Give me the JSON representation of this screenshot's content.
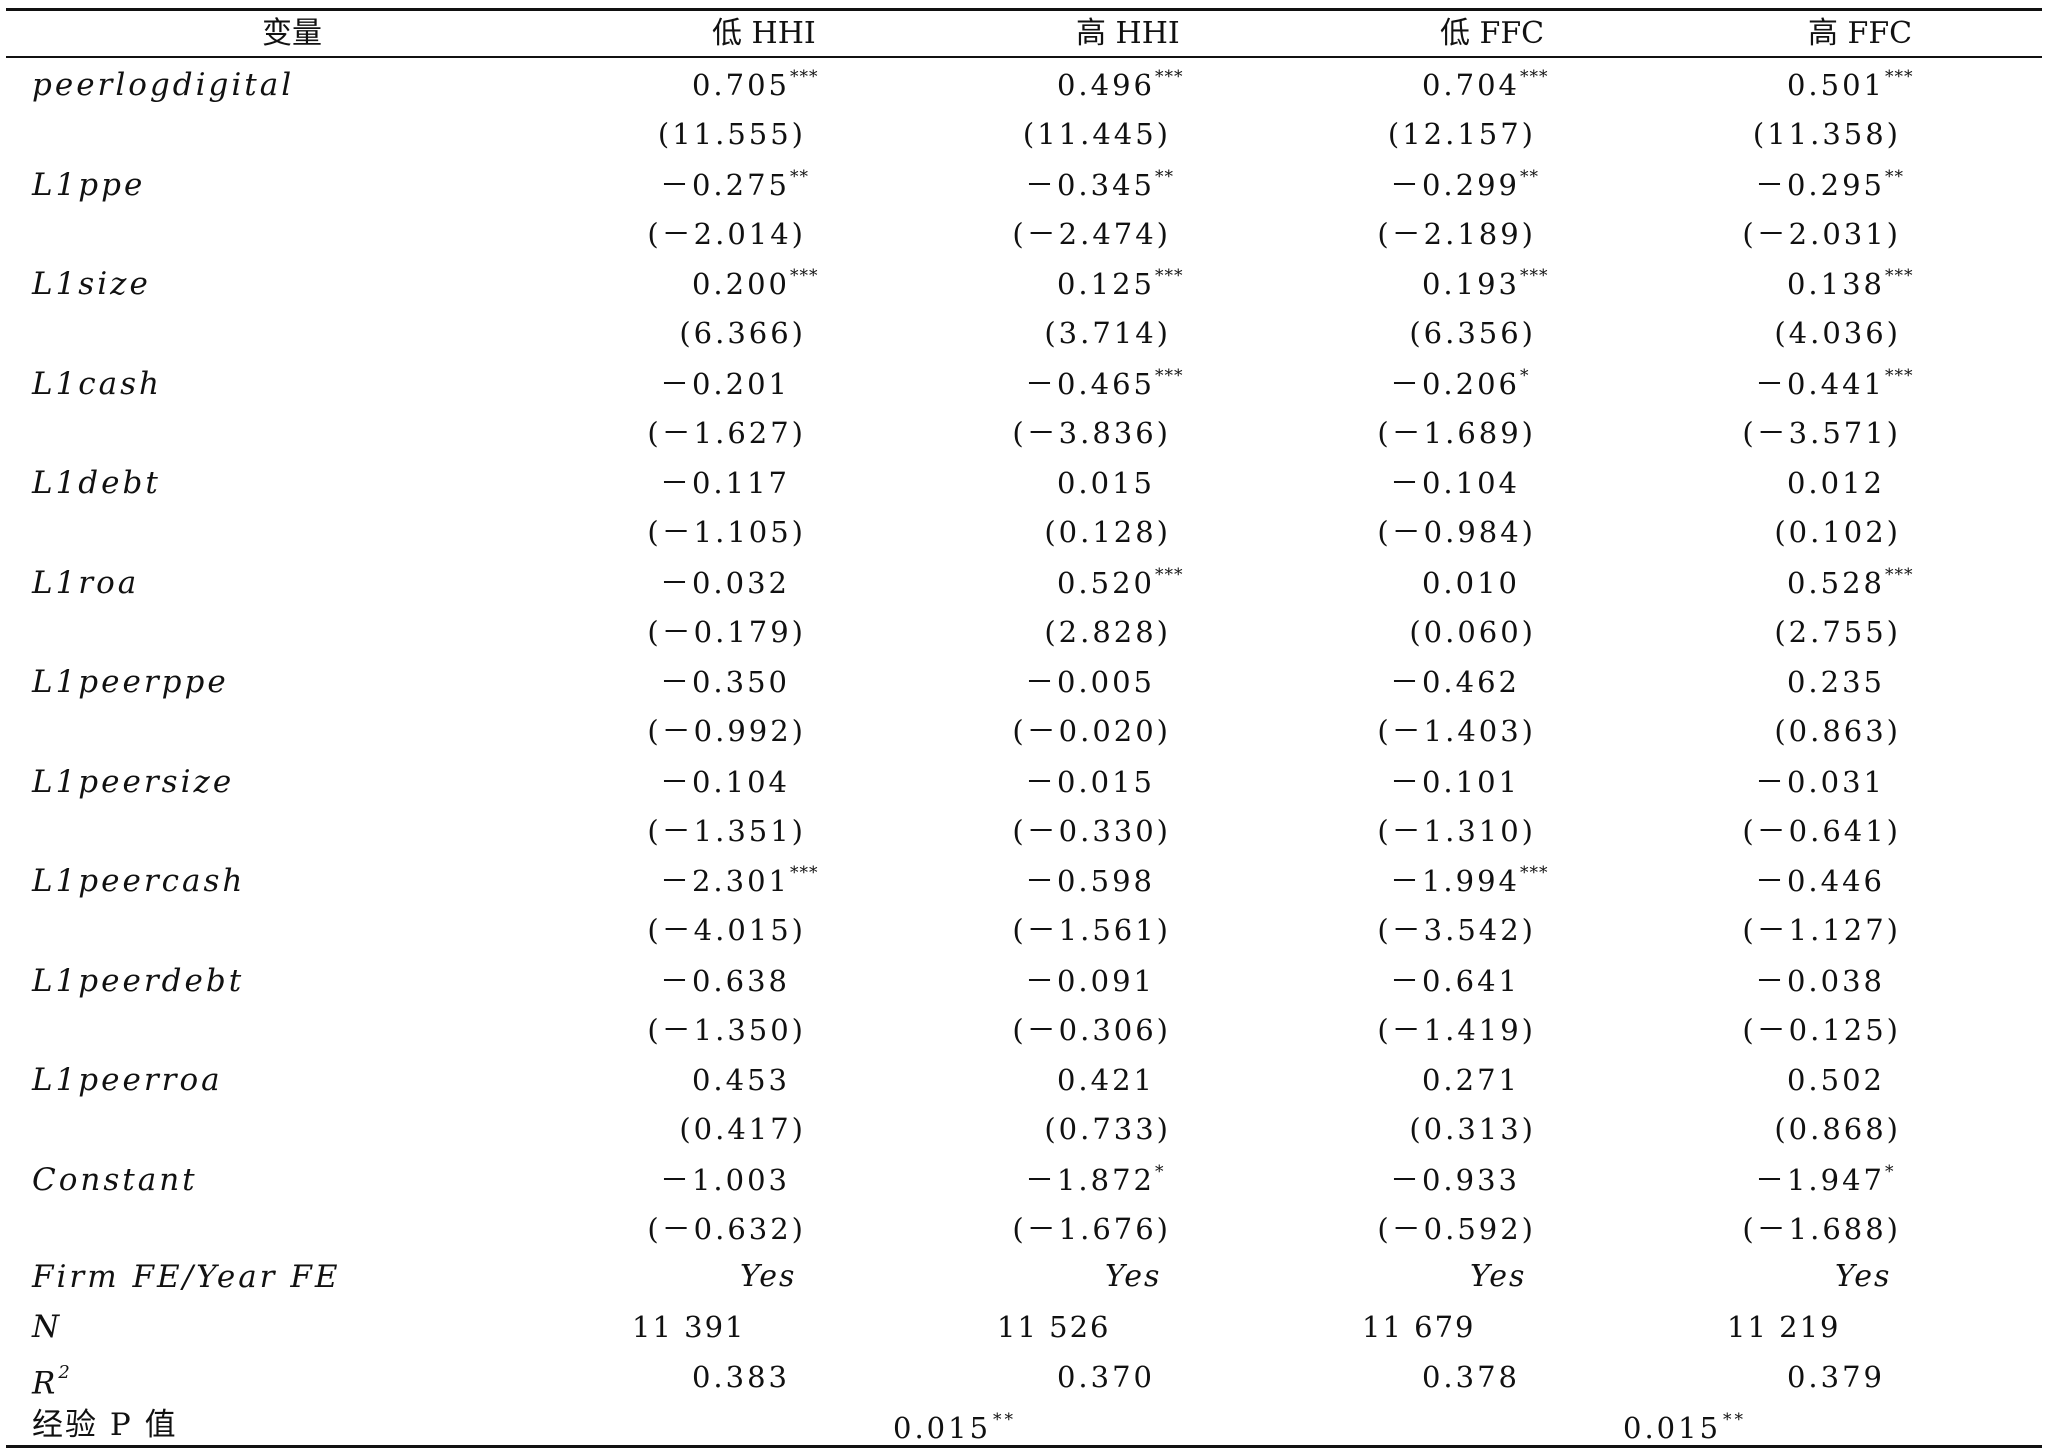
{
  "header": {
    "c0": "变量",
    "c1": "低 HHI",
    "c2": "高 HHI",
    "c3": "低 FFC",
    "c4": "高 FFC"
  },
  "rows": [
    {
      "label": "peerlogdigital",
      "coef": [
        "0.705",
        "0.496",
        "0.704",
        "0.501"
      ],
      "stars": [
        "***",
        "***",
        "***",
        "***"
      ],
      "t": [
        "(11.555)",
        "(11.445)",
        "(12.157)",
        "(11.358)"
      ]
    },
    {
      "label": "L1ppe",
      "coef": [
        "－0.275",
        "－0.345",
        "－0.299",
        "－0.295"
      ],
      "stars": [
        "**",
        "**",
        "**",
        "**"
      ],
      "t": [
        "(－2.014)",
        "(－2.474)",
        "(－2.189)",
        "(－2.031)"
      ]
    },
    {
      "label": "L1size",
      "coef": [
        "0.200",
        "0.125",
        "0.193",
        "0.138"
      ],
      "stars": [
        "***",
        "***",
        "***",
        "***"
      ],
      "t": [
        "(6.366)",
        "(3.714)",
        "(6.356)",
        "(4.036)"
      ]
    },
    {
      "label": "L1cash",
      "coef": [
        "－0.201",
        "－0.465",
        "－0.206",
        "－0.441"
      ],
      "stars": [
        "",
        "***",
        "*",
        "***"
      ],
      "t": [
        "(－1.627)",
        "(－3.836)",
        "(－1.689)",
        "(－3.571)"
      ]
    },
    {
      "label": "L1debt",
      "coef": [
        "－0.117",
        "0.015",
        "－0.104",
        "0.012"
      ],
      "stars": [
        "",
        "",
        "",
        ""
      ],
      "t": [
        "(－1.105)",
        "(0.128)",
        "(－0.984)",
        "(0.102)"
      ]
    },
    {
      "label": "L1roa",
      "coef": [
        "－0.032",
        "0.520",
        "0.010",
        "0.528"
      ],
      "stars": [
        "",
        "***",
        "",
        "***"
      ],
      "t": [
        "(－0.179)",
        "(2.828)",
        "(0.060)",
        "(2.755)"
      ]
    },
    {
      "label": "L1peerppe",
      "coef": [
        "－0.350",
        "－0.005",
        "－0.462",
        "0.235"
      ],
      "stars": [
        "",
        "",
        "",
        ""
      ],
      "t": [
        "(－0.992)",
        "(－0.020)",
        "(－1.403)",
        "(0.863)"
      ]
    },
    {
      "label": "L1peersize",
      "coef": [
        "－0.104",
        "－0.015",
        "－0.101",
        "－0.031"
      ],
      "stars": [
        "",
        "",
        "",
        ""
      ],
      "t": [
        "(－1.351)",
        "(－0.330)",
        "(－1.310)",
        "(－0.641)"
      ]
    },
    {
      "label": "L1peercash",
      "coef": [
        "－2.301",
        "－0.598",
        "－1.994",
        "－0.446"
      ],
      "stars": [
        "***",
        "",
        "***",
        ""
      ],
      "t": [
        "(－4.015)",
        "(－1.561)",
        "(－3.542)",
        "(－1.127)"
      ]
    },
    {
      "label": "L1peerdebt",
      "coef": [
        "－0.638",
        "－0.091",
        "－0.641",
        "－0.038"
      ],
      "stars": [
        "",
        "",
        "",
        ""
      ],
      "t": [
        "(－1.350)",
        "(－0.306)",
        "(－1.419)",
        "(－0.125)"
      ]
    },
    {
      "label": "L1peerroa",
      "coef": [
        "0.453",
        "0.421",
        "0.271",
        "0.502"
      ],
      "stars": [
        "",
        "",
        "",
        ""
      ],
      "t": [
        "(0.417)",
        "(0.733)",
        "(0.313)",
        "(0.868)"
      ]
    },
    {
      "label": "Constant",
      "coef": [
        "－1.003",
        "－1.872",
        "－0.933",
        "－1.947"
      ],
      "stars": [
        "",
        "*",
        "",
        "*"
      ],
      "t": [
        "(－0.632)",
        "(－1.676)",
        "(－0.592)",
        "(－1.688)"
      ]
    }
  ],
  "fe": {
    "label": "Firm FE/Year FE",
    "values": [
      "Yes",
      "Yes",
      "Yes",
      "Yes"
    ]
  },
  "n": {
    "label": "N",
    "values": [
      "11 391",
      "11 526",
      "11 679",
      "11 219"
    ]
  },
  "r2": {
    "label": "R",
    "sup": "2",
    "values": [
      "0.383",
      "0.370",
      "0.378",
      "0.379"
    ]
  },
  "pval": {
    "label": "经验 P 值",
    "values": [
      "0.015",
      "0.015"
    ],
    "stars": [
      "**",
      "**"
    ]
  }
}
